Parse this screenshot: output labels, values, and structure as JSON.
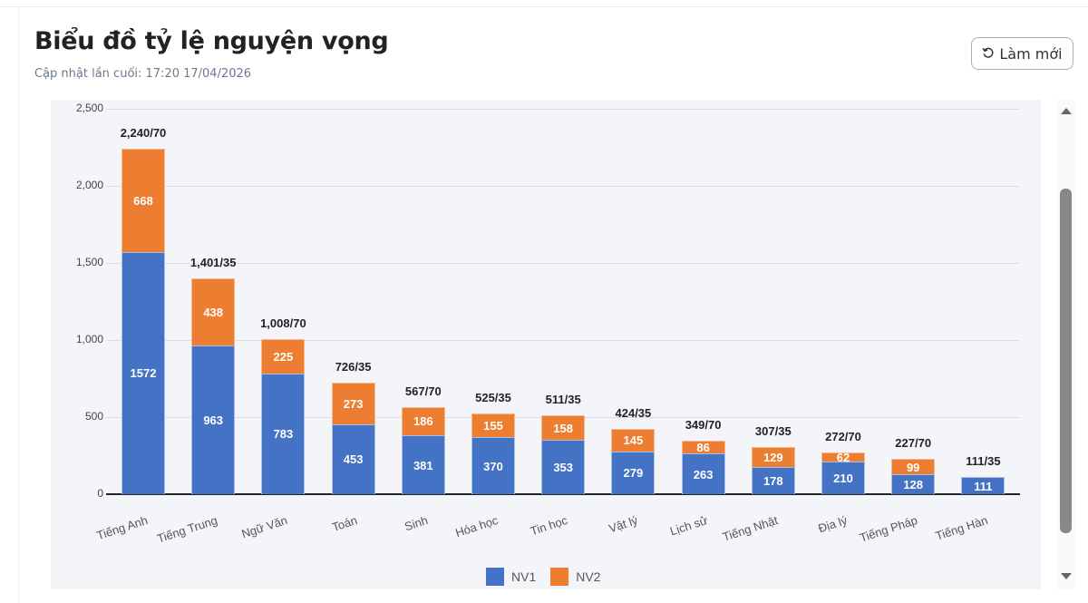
{
  "header": {
    "title": "Biểu đồ tỷ lệ nguyện vọng",
    "last_updated": "Cập nhật lần cuối: 17:20 17/04/2026",
    "refresh_label": "Làm mới",
    "refresh_icon": "refresh-icon"
  },
  "colors": {
    "nv1": "#4472c4",
    "nv2": "#ed7d31",
    "background": "#f4f5f8"
  },
  "chart_data": {
    "type": "bar",
    "stacked": true,
    "title": "Biểu đồ tỷ lệ nguyện vọng",
    "xlabel": "",
    "ylabel": "",
    "ylim": [
      0,
      2500
    ],
    "yticks": [
      "0",
      "500",
      "1,000",
      "1,500",
      "2,000",
      "2,500"
    ],
    "grid": true,
    "legend_position": "bottom",
    "categories": [
      "Tiếng Anh",
      "Tiếng Trung",
      "Ngữ Văn",
      "Toán",
      "Sinh",
      "Hóa học",
      "Tin học",
      "Vật lý",
      "Lịch sử",
      "Tiếng Nhật",
      "Địa lý",
      "Tiếng Pháp",
      "Tiếng Hàn"
    ],
    "series": [
      {
        "name": "NV1",
        "color": "#4472c4",
        "values": [
          1572,
          963,
          783,
          453,
          381,
          370,
          353,
          279,
          263,
          178,
          210,
          128,
          111
        ]
      },
      {
        "name": "NV2",
        "color": "#ed7d31",
        "values": [
          668,
          438,
          225,
          273,
          186,
          155,
          158,
          145,
          86,
          129,
          62,
          99,
          0
        ]
      }
    ],
    "total_labels": [
      "2,240/70",
      "1,401/35",
      "1,008/70",
      "726/35",
      "567/70",
      "525/35",
      "511/35",
      "424/35",
      "349/70",
      "307/35",
      "272/70",
      "227/70",
      "111/35"
    ]
  },
  "legend": {
    "items": [
      {
        "label": "NV1"
      },
      {
        "label": "NV2"
      }
    ]
  }
}
